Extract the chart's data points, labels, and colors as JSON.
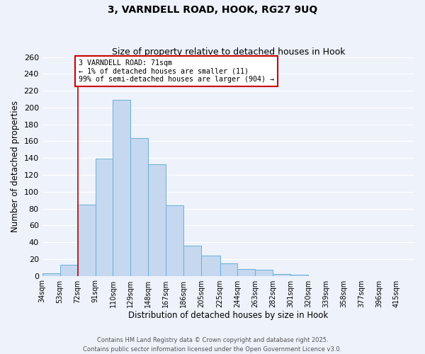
{
  "title": "3, VARNDELL ROAD, HOOK, RG27 9UQ",
  "subtitle": "Size of property relative to detached houses in Hook",
  "xlabel": "Distribution of detached houses by size in Hook",
  "ylabel": "Number of detached properties",
  "bin_labels": [
    "34sqm",
    "53sqm",
    "72sqm",
    "91sqm",
    "110sqm",
    "129sqm",
    "148sqm",
    "167sqm",
    "186sqm",
    "205sqm",
    "225sqm",
    "244sqm",
    "263sqm",
    "282sqm",
    "301sqm",
    "320sqm",
    "339sqm",
    "358sqm",
    "377sqm",
    "396sqm",
    "415sqm"
  ],
  "bin_edges": [
    34,
    53,
    72,
    91,
    110,
    129,
    148,
    167,
    186,
    205,
    225,
    244,
    263,
    282,
    301,
    320,
    339,
    358,
    377,
    396,
    415
  ],
  "bar_heights": [
    3,
    13,
    85,
    139,
    209,
    164,
    133,
    84,
    36,
    24,
    15,
    8,
    7,
    2,
    1,
    0,
    0,
    0,
    0,
    0
  ],
  "bar_color": "#c5d8f0",
  "bar_edge_color": "#6aaed6",
  "vline_x": 72,
  "vline_color": "#cc0000",
  "annotation_title": "3 VARNDELL ROAD: 71sqm",
  "annotation_line1": "← 1% of detached houses are smaller (11)",
  "annotation_line2": "99% of semi-detached houses are larger (904) →",
  "annotation_box_color": "white",
  "annotation_box_edge": "#cc0000",
  "ylim": [
    0,
    260
  ],
  "yticks": [
    0,
    20,
    40,
    60,
    80,
    100,
    120,
    140,
    160,
    180,
    200,
    220,
    240,
    260
  ],
  "footer1": "Contains HM Land Registry data © Crown copyright and database right 2025.",
  "footer2": "Contains public sector information licensed under the Open Government Licence v3.0.",
  "bg_color": "#edf2fb",
  "grid_color": "#ffffff",
  "title_fontsize": 10,
  "subtitle_fontsize": 9
}
